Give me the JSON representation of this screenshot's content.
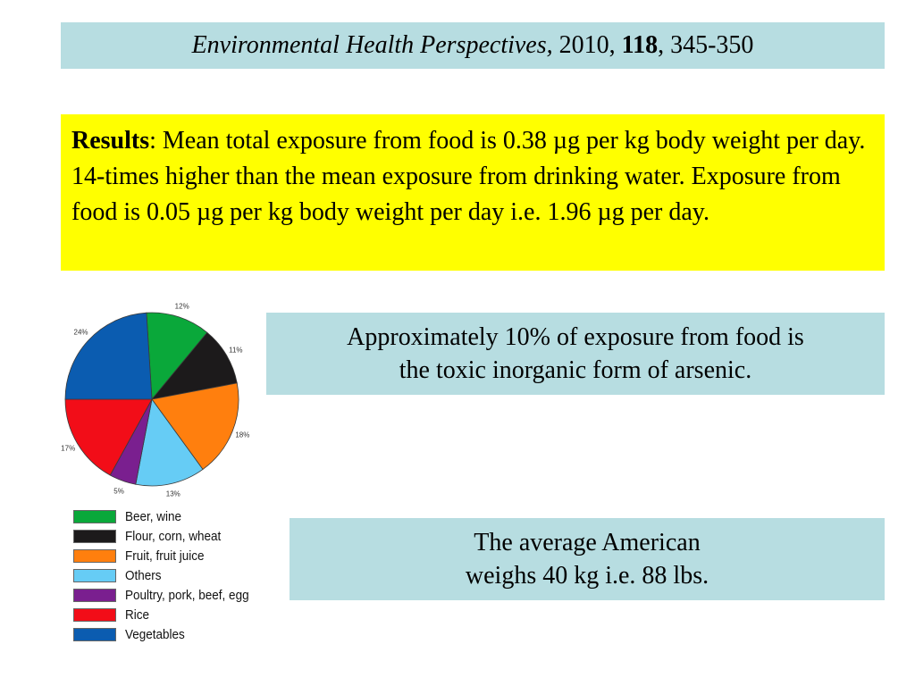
{
  "citation": {
    "journal": "Environmental Health Perspectives,",
    "year": " 2010, ",
    "volume": "118",
    "pages": ", 345-350"
  },
  "results": {
    "label": "Results",
    "text": ":  Mean total exposure from food is 0.38 µg per kg body weight per day.  14-times higher than the mean exposure from drinking water.  Exposure from food is 0.05 µg per kg body weight per day i.e. 1.96 µg per day."
  },
  "notes": {
    "inorganic": {
      "line1": "Approximately 10% of exposure from food is",
      "line2": "the toxic inorganic form of arsenic."
    },
    "weight": {
      "line1": "The average American",
      "line2": "weighs 40 kg i.e. 88 lbs."
    }
  },
  "colors": {
    "cite_bg": "#b7dde1",
    "results_bg": "#ffff00"
  },
  "chart_data": {
    "type": "pie",
    "title": "",
    "categories": [
      "Beer, wine",
      "Flour, corn, wheat",
      "Fruit, fruit juice",
      "Others",
      "Poultry, pork, beef, egg",
      "Rice",
      "Vegetables"
    ],
    "values": [
      12,
      11,
      18,
      13,
      5,
      17,
      24
    ],
    "labels": [
      "12%",
      "11%",
      "18%",
      "13%",
      "5%",
      "17%",
      "24%"
    ],
    "colors": [
      "#0aa83a",
      "#1c1a1b",
      "#ff7f0e",
      "#66ccf5",
      "#7a1f8f",
      "#f20d18",
      "#0b5cb0"
    ],
    "legend_position": "bottom",
    "start_angle_deg": -3.6,
    "direction": "clockwise"
  },
  "legend": {
    "items": [
      {
        "label": "Beer, wine",
        "color": "#0aa83a"
      },
      {
        "label": "Flour, corn, wheat",
        "color": "#1c1a1b"
      },
      {
        "label": "Fruit, fruit juice",
        "color": "#ff7f0e"
      },
      {
        "label": "Others",
        "color": "#66ccf5"
      },
      {
        "label": "Poultry, pork, beef, egg",
        "color": "#7a1f8f"
      },
      {
        "label": "Rice",
        "color": "#f20d18"
      },
      {
        "label": "Vegetables",
        "color": "#0b5cb0"
      }
    ]
  }
}
